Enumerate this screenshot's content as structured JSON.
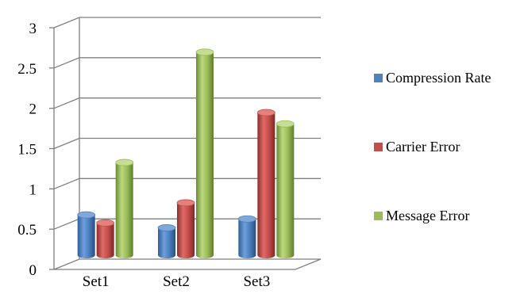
{
  "chart_data": {
    "type": "bar",
    "style": "3d-cylinder",
    "categories": [
      "Set1",
      "Set2",
      "Set3"
    ],
    "series": [
      {
        "name": "Compression Rate",
        "values": [
          0.5,
          0.34,
          0.45
        ],
        "color": "#4f81bd"
      },
      {
        "name": "Carrier Error",
        "values": [
          0.4,
          0.65,
          1.77
        ],
        "color": "#c0504d"
      },
      {
        "name": "Message Error",
        "values": [
          1.15,
          2.52,
          1.63
        ],
        "color": "#9bbb59"
      }
    ],
    "yticks": [
      "0",
      "0.5",
      "1",
      "1.5",
      "2",
      "2.5",
      "3"
    ],
    "ylim": [
      0,
      3
    ],
    "grid": true,
    "legend": "right"
  }
}
